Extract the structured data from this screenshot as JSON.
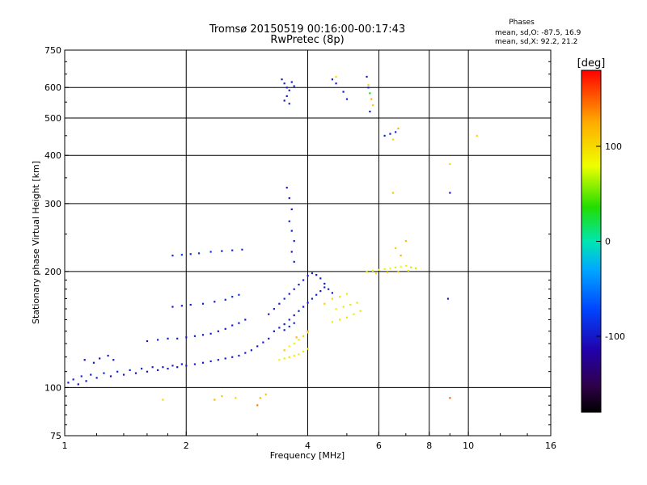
{
  "chart_data": {
    "type": "scatter",
    "title": "Tromsø 20150519 00:16:00-00:17:43",
    "subtitle": "RwPretec (8p)",
    "stats": {
      "heading": "Phases",
      "line1": "mean, sd,O:  -87.5, 16.9",
      "line2": "mean, sd,X:  92.2, 21.2"
    },
    "xlabel": "Frequency [MHz]",
    "ylabel": "Stationary phase Virtual Height [km]",
    "x_scale": "log",
    "y_scale": "log",
    "xlim": [
      1,
      16
    ],
    "ylim": [
      75,
      750
    ],
    "grid": true,
    "x_ticks": [
      1,
      2,
      4,
      6,
      8,
      10,
      16
    ],
    "y_ticks": [
      75,
      100,
      200,
      300,
      400,
      500,
      600,
      750
    ],
    "x_grid": [
      2,
      4,
      6,
      8,
      10
    ],
    "y_grid": [
      100,
      200,
      300,
      400,
      500,
      600
    ],
    "colorbar": {
      "label": "[deg]",
      "range": [
        -180,
        180
      ],
      "ticks": [
        100,
        0,
        -100
      ]
    },
    "series": [
      {
        "values": [
          [
            1.02,
            103,
            -100
          ],
          [
            1.05,
            105,
            -95
          ],
          [
            1.08,
            102,
            -110
          ],
          [
            1.1,
            107,
            -90
          ],
          [
            1.13,
            104,
            -105
          ],
          [
            1.16,
            108,
            -95
          ],
          [
            1.2,
            106,
            -100
          ],
          [
            1.25,
            109,
            -92
          ],
          [
            1.3,
            107,
            -108
          ],
          [
            1.35,
            110,
            -96
          ],
          [
            1.4,
            108,
            -100
          ],
          [
            1.45,
            111,
            -90
          ],
          [
            1.5,
            109,
            -105
          ],
          [
            1.55,
            112,
            -95
          ],
          [
            1.6,
            110,
            -100
          ],
          [
            1.65,
            113,
            -92
          ],
          [
            1.7,
            111,
            -104
          ],
          [
            1.75,
            113,
            -98
          ],
          [
            1.8,
            112,
            -100
          ],
          [
            1.85,
            114,
            -95
          ],
          [
            1.9,
            113,
            -102
          ],
          [
            1.95,
            115,
            -97
          ],
          [
            2.0,
            114,
            -100
          ],
          [
            2.1,
            115,
            -95
          ],
          [
            2.2,
            116,
            -100
          ],
          [
            2.3,
            117,
            -92
          ],
          [
            2.4,
            118,
            -98
          ],
          [
            2.5,
            119,
            -95
          ],
          [
            2.6,
            120,
            -100
          ],
          [
            2.7,
            121,
            -94
          ],
          [
            2.8,
            123,
            -98
          ],
          [
            2.9,
            125,
            -95
          ],
          [
            3.0,
            128,
            -100
          ],
          [
            3.1,
            131,
            -96
          ],
          [
            3.2,
            134,
            -100
          ]
        ]
      },
      {
        "values": [
          [
            1.12,
            118,
            -110
          ],
          [
            1.18,
            116,
            -100
          ],
          [
            1.22,
            119,
            -105
          ],
          [
            1.28,
            121,
            -98
          ],
          [
            1.32,
            118,
            -102
          ],
          [
            1.6,
            132,
            -100
          ],
          [
            1.7,
            133,
            -95
          ],
          [
            1.8,
            134,
            -100
          ],
          [
            1.9,
            134,
            -96
          ],
          [
            2.0,
            135,
            -100
          ],
          [
            2.1,
            136,
            -95
          ],
          [
            2.2,
            137,
            -100
          ],
          [
            2.3,
            138,
            -95
          ],
          [
            2.4,
            140,
            -100
          ],
          [
            2.5,
            142,
            -95
          ],
          [
            2.6,
            145,
            -100
          ],
          [
            2.7,
            147,
            -96
          ],
          [
            2.8,
            150,
            -100
          ]
        ]
      },
      {
        "values": [
          [
            1.85,
            162,
            -100
          ],
          [
            1.95,
            163,
            -95
          ],
          [
            2.05,
            164,
            -100
          ],
          [
            2.2,
            165,
            -92
          ],
          [
            2.35,
            167,
            -98
          ],
          [
            2.5,
            169,
            -95
          ],
          [
            2.6,
            172,
            -85
          ],
          [
            2.7,
            174,
            -80
          ],
          [
            1.85,
            220,
            -90
          ],
          [
            1.95,
            221,
            -80
          ],
          [
            2.05,
            222,
            -95
          ],
          [
            2.15,
            223,
            -85
          ],
          [
            2.3,
            225,
            -80
          ],
          [
            2.45,
            226,
            -100
          ],
          [
            2.6,
            227,
            -90
          ],
          [
            2.75,
            228,
            -85
          ]
        ]
      },
      {
        "values": [
          [
            3.2,
            155,
            -100
          ],
          [
            3.3,
            160,
            -95
          ],
          [
            3.4,
            165,
            -100
          ],
          [
            3.5,
            170,
            -92
          ],
          [
            3.6,
            175,
            -98
          ],
          [
            3.7,
            180,
            -95
          ],
          [
            3.8,
            185,
            -100
          ],
          [
            3.9,
            190,
            -94
          ],
          [
            4.0,
            195,
            -98
          ],
          [
            4.1,
            198,
            -95
          ],
          [
            4.2,
            196,
            -100
          ],
          [
            4.3,
            192,
            -96
          ],
          [
            4.4,
            186,
            -100
          ],
          [
            4.5,
            180,
            -95
          ],
          [
            4.6,
            176,
            -100
          ],
          [
            3.5,
            146,
            -100
          ],
          [
            3.6,
            150,
            -95
          ],
          [
            3.7,
            154,
            -100
          ],
          [
            3.8,
            158,
            -95
          ],
          [
            3.9,
            162,
            -100
          ],
          [
            4.0,
            166,
            -96
          ],
          [
            4.1,
            170,
            -100
          ],
          [
            4.2,
            174,
            -95
          ],
          [
            4.3,
            178,
            -100
          ],
          [
            4.4,
            182,
            -95
          ],
          [
            3.3,
            140,
            -100
          ],
          [
            3.4,
            143,
            -95
          ],
          [
            3.5,
            141,
            -100
          ],
          [
            3.6,
            144,
            -90
          ],
          [
            3.7,
            147,
            -95
          ]
        ]
      },
      {
        "values": [
          [
            3.4,
            118,
            85
          ],
          [
            3.5,
            119,
            90
          ],
          [
            3.6,
            120,
            95
          ],
          [
            3.7,
            121,
            90
          ],
          [
            3.8,
            122,
            88
          ],
          [
            3.9,
            124,
            92
          ],
          [
            4.0,
            126,
            95
          ],
          [
            3.6,
            128,
            80
          ],
          [
            3.7,
            130,
            85
          ],
          [
            3.8,
            133,
            95
          ],
          [
            3.9,
            136,
            100
          ],
          [
            4.0,
            139,
            90
          ],
          [
            3.5,
            125,
            110
          ],
          [
            3.75,
            135,
            120
          ],
          [
            4.0,
            140,
            125
          ],
          [
            4.6,
            148,
            88
          ],
          [
            4.8,
            150,
            92
          ],
          [
            5.0,
            152,
            95
          ],
          [
            5.2,
            155,
            90
          ],
          [
            5.4,
            158,
            94
          ],
          [
            4.7,
            160,
            85
          ],
          [
            4.9,
            162,
            90
          ],
          [
            5.1,
            164,
            92
          ],
          [
            5.3,
            166,
            95
          ],
          [
            4.4,
            165,
            105
          ],
          [
            4.6,
            170,
            100
          ],
          [
            4.8,
            172,
            95
          ],
          [
            5.0,
            175,
            92
          ]
        ]
      },
      {
        "values": [
          [
            5.6,
            200,
            70
          ],
          [
            5.8,
            201,
            75
          ],
          [
            6.0,
            202,
            80
          ],
          [
            6.2,
            203,
            85
          ],
          [
            6.4,
            204,
            78
          ],
          [
            6.6,
            205,
            72
          ],
          [
            6.8,
            206,
            80
          ],
          [
            7.0,
            207,
            76
          ],
          [
            7.2,
            205,
            70
          ],
          [
            7.4,
            204,
            68
          ],
          [
            5.9,
            198,
            95
          ],
          [
            6.3,
            199,
            100
          ],
          [
            6.7,
            200,
            105
          ],
          [
            7.1,
            201,
            98
          ],
          [
            6.2,
            450,
            -95
          ],
          [
            6.4,
            455,
            -100
          ],
          [
            6.6,
            460,
            -90
          ],
          [
            6.5,
            440,
            100
          ],
          [
            6.7,
            470,
            120
          ],
          [
            6.5,
            320,
            110
          ],
          [
            6.6,
            230,
            105
          ],
          [
            7.0,
            240,
            115
          ],
          [
            6.8,
            220,
            120
          ]
        ]
      },
      {
        "values": [
          [
            3.45,
            630,
            -100
          ],
          [
            3.5,
            615,
            -95
          ],
          [
            3.55,
            600,
            -100
          ],
          [
            3.6,
            590,
            -96
          ],
          [
            3.65,
            620,
            -100
          ],
          [
            3.7,
            605,
            -95
          ],
          [
            3.55,
            570,
            -100
          ],
          [
            3.5,
            555,
            -100
          ],
          [
            3.6,
            545,
            -95
          ],
          [
            3.55,
            330,
            -100
          ],
          [
            3.6,
            310,
            -95
          ],
          [
            3.65,
            290,
            -100
          ],
          [
            3.6,
            270,
            -96
          ],
          [
            3.65,
            255,
            -100
          ],
          [
            3.7,
            240,
            -95
          ],
          [
            3.65,
            225,
            -100
          ],
          [
            3.7,
            212,
            -96
          ],
          [
            5.6,
            640,
            -100
          ],
          [
            5.65,
            600,
            -95
          ],
          [
            5.7,
            580,
            30
          ],
          [
            5.75,
            560,
            120
          ],
          [
            5.8,
            540,
            110
          ],
          [
            5.65,
            610,
            100
          ],
          [
            5.7,
            520,
            -100
          ],
          [
            4.6,
            630,
            -100
          ],
          [
            4.7,
            615,
            -95
          ],
          [
            4.9,
            585,
            -100
          ],
          [
            5.0,
            560,
            -95
          ],
          [
            4.7,
            640,
            100
          ]
        ]
      },
      {
        "values": [
          [
            1.75,
            93,
            100
          ],
          [
            2.35,
            93,
            120
          ],
          [
            2.45,
            95,
            110
          ],
          [
            2.65,
            94,
            100
          ],
          [
            3.0,
            90,
            140
          ],
          [
            3.05,
            94,
            120
          ],
          [
            3.15,
            96,
            110
          ],
          [
            9.0,
            94,
            150
          ],
          [
            9.0,
            380,
            100
          ],
          [
            10.5,
            450,
            100
          ],
          [
            9.0,
            320,
            -100
          ],
          [
            8.9,
            170,
            -100
          ]
        ]
      }
    ]
  }
}
